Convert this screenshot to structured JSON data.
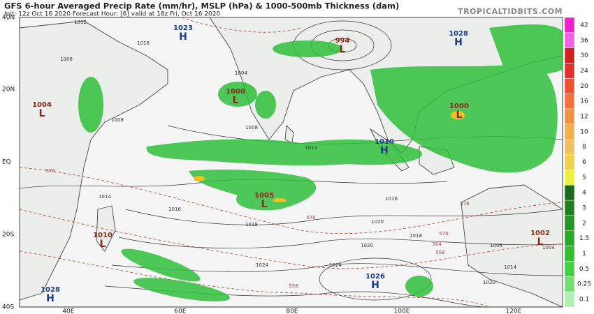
{
  "header": {
    "title": "GFS 6-hour Averaged Precip Rate (mm/hr), MSLP (hPa) & 1000-500mb Thickness (dam)",
    "subtitle": "Init: 12z Oct 16 2020   Forecast Hour: [6]   valid at 18z Fri, Oct 16 2020",
    "brand": "TROPICALTIDBITS.COM"
  },
  "lat_labels": [
    "40N",
    "20N",
    "EQ",
    "20S",
    "40S"
  ],
  "lon_labels": [
    "40E",
    "60E",
    "80E",
    "100E",
    "120E"
  ],
  "pressure_centers": [
    {
      "letter": "H",
      "value": "1023"
    },
    {
      "letter": "H",
      "value": "1028"
    },
    {
      "letter": "L",
      "value": "1004"
    },
    {
      "letter": "L",
      "value": "1000"
    },
    {
      "letter": "L",
      "value": "994"
    },
    {
      "letter": "H",
      "value": "1010"
    },
    {
      "letter": "L",
      "value": "1000"
    },
    {
      "letter": "L",
      "value": "1005"
    },
    {
      "letter": "L",
      "value": "1010"
    },
    {
      "letter": "H",
      "value": "1028"
    },
    {
      "letter": "H",
      "value": "1026"
    },
    {
      "letter": "L",
      "value": "1002"
    }
  ],
  "isobar_labels": [
    "1012",
    "1016",
    "1008",
    "1004",
    "1008",
    "1008",
    "1014",
    "1014",
    "1016",
    "1018",
    "1020",
    "1020",
    "1024",
    "1024",
    "1016",
    "1018",
    "1006",
    "1014",
    "1020",
    "1004"
  ],
  "thickness_labels": [
    "576",
    "576",
    "570",
    "570",
    "564",
    "558",
    "558"
  ],
  "colorbar": {
    "levels": [
      42,
      36,
      30,
      24,
      20,
      16,
      12,
      10,
      8,
      6,
      5,
      4,
      3,
      2,
      1.5,
      1,
      0.5,
      0.25,
      0.1
    ],
    "colors": [
      "#f020d0",
      "#f060e0",
      "#d02020",
      "#e03030",
      "#f05030",
      "#f07040",
      "#f09040",
      "#f0b050",
      "#f0c060",
      "#f0d050",
      "#f0f040",
      "#1a6a1a",
      "#1f7f1f",
      "#239523",
      "#28aa28",
      "#2fbf2f",
      "#40d040",
      "#70e070",
      "#b0f0b0"
    ]
  }
}
